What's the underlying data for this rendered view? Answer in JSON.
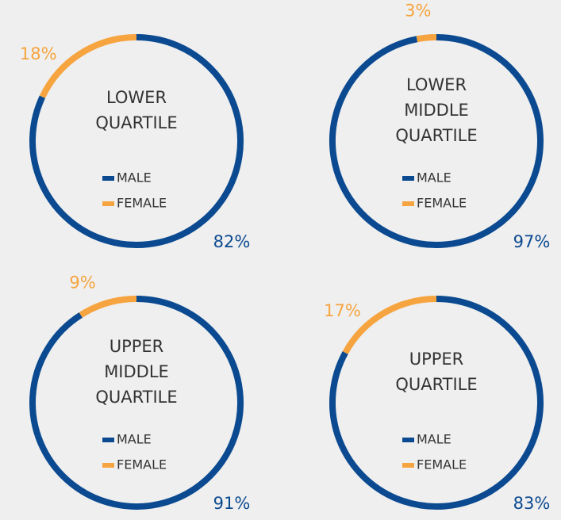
{
  "chart_data": [
    {
      "type": "pie",
      "title": "LOWER QUARTILE",
      "categories": [
        "MALE",
        "FEMALE"
      ],
      "values": [
        82,
        18
      ],
      "value_labels": [
        "82%",
        "18%"
      ],
      "colors": [
        "#0b4a90",
        "#f6a43f"
      ]
    },
    {
      "type": "pie",
      "title": "LOWER MIDDLE QUARTILE",
      "categories": [
        "MALE",
        "FEMALE"
      ],
      "values": [
        97,
        3
      ],
      "value_labels": [
        "97%",
        "3%"
      ],
      "colors": [
        "#0b4a90",
        "#f6a43f"
      ]
    },
    {
      "type": "pie",
      "title": "UPPER MIDDLE QUARTILE",
      "categories": [
        "MALE",
        "FEMALE"
      ],
      "values": [
        91,
        9
      ],
      "value_labels": [
        "91%",
        "9%"
      ],
      "colors": [
        "#0b4a90",
        "#f6a43f"
      ]
    },
    {
      "type": "pie",
      "title": "UPPER QUARTILE",
      "categories": [
        "MALE",
        "FEMALE"
      ],
      "values": [
        83,
        17
      ],
      "value_labels": [
        "83%",
        "17%"
      ],
      "colors": [
        "#0b4a90",
        "#f6a43f"
      ]
    }
  ]
}
